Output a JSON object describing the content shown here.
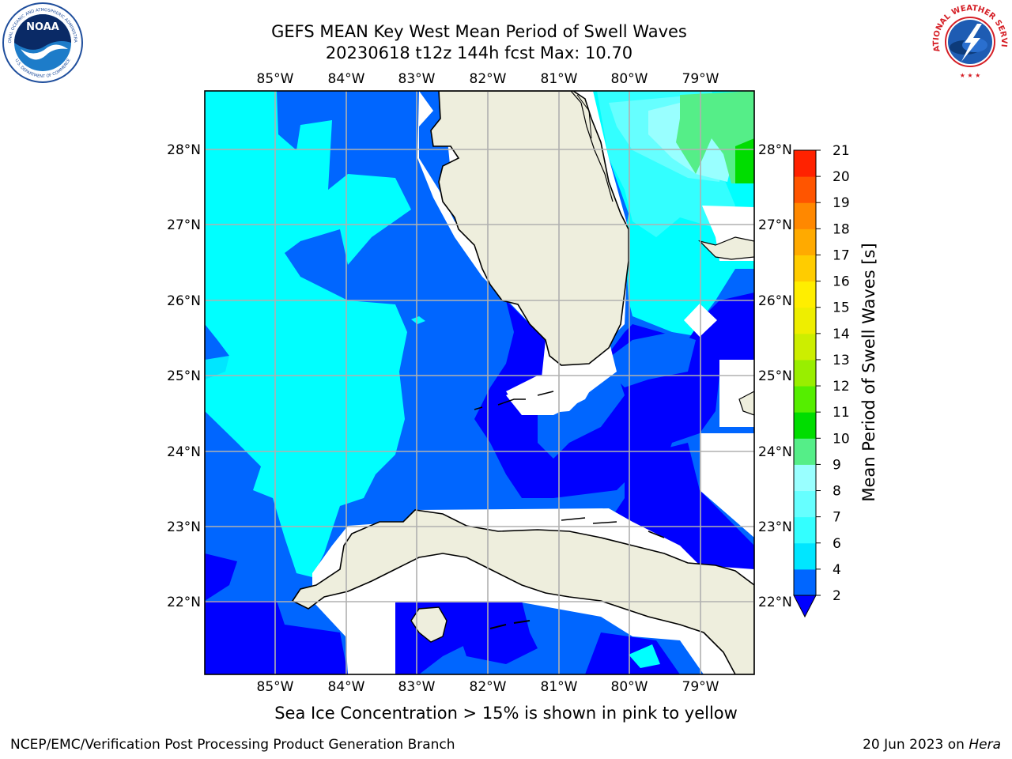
{
  "title": {
    "line1": "GEFS MEAN Key West Mean Period of Swell Waves",
    "line2": "20230618 t12z 144h fcst   Max: 10.70"
  },
  "logos": {
    "noaa": {
      "text": "NOAA",
      "ring_top": "NATIONAL OCEANIC AND ATMOSPHERIC ADMINISTRATION",
      "ring_bottom": "U.S. DEPARTMENT OF COMMERCE"
    },
    "nws": {
      "ring": "NATIONAL WEATHER SERVICE"
    }
  },
  "map": {
    "lon_labels": [
      "85°W",
      "84°W",
      "83°W",
      "82°W",
      "81°W",
      "80°W",
      "79°W"
    ],
    "lat_labels": [
      "28°N",
      "27°N",
      "26°N",
      "25°N",
      "24°N",
      "23°N",
      "22°N"
    ],
    "lon_values": [
      -85,
      -84,
      -83,
      -82,
      -81,
      -80,
      -79
    ],
    "lat_values": [
      28,
      27,
      26,
      25,
      24,
      23,
      22
    ],
    "extent": {
      "lon_min": -86.0,
      "lon_max": -78.3,
      "lat_min": 21.0,
      "lat_max": 28.75
    },
    "colors": {
      "land": "#eeeedd",
      "coast": "#000000",
      "grid": "#b0b0b0"
    }
  },
  "colorbar": {
    "label": "Mean Period of Swell Waves [s]",
    "ticks": [
      "2",
      "4",
      "6",
      "7",
      "8",
      "9",
      "10",
      "11",
      "12",
      "13",
      "14",
      "15",
      "16",
      "17",
      "18",
      "19",
      "20",
      "21"
    ],
    "levels": [
      2,
      4,
      6,
      7,
      8,
      9,
      10,
      11,
      12,
      13,
      14,
      15,
      16,
      17,
      18,
      19,
      20,
      21
    ],
    "colors": [
      "#0066ff",
      "#00e6ff",
      "#33ffff",
      "#66ffff",
      "#99ffff",
      "#55ee88",
      "#00dd00",
      "#55ee00",
      "#99ee00",
      "#ccee00",
      "#eeee00",
      "#ffee00",
      "#ffcc00",
      "#ffaa00",
      "#ff8800",
      "#ff5500",
      "#ff2200"
    ],
    "under_color": "#0000ff"
  },
  "note": "Sea Ice Concentration > 15% is shown in pink to yellow",
  "footer": {
    "left": "NCEP/EMC/Verification Post Processing Product Generation Branch",
    "right_date": "20 Jun 2023 on ",
    "right_host": "Hera"
  }
}
